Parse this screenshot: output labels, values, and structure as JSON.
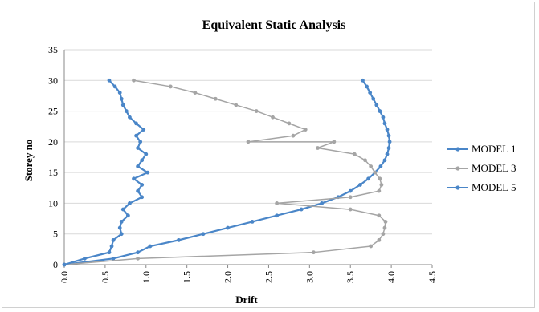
{
  "chart_data": {
    "type": "line",
    "title": "Equivalent Static Analysis",
    "xlabel": "Drift",
    "ylabel": "Storey no",
    "xlim": [
      0,
      4.5
    ],
    "ylim": [
      0,
      35
    ],
    "x_ticks": [
      "0.0",
      "0.5",
      "1.0",
      "1.5",
      "2.0",
      "2.5",
      "3.0",
      "3.5",
      "4.0",
      "4.5"
    ],
    "y_ticks": [
      "0",
      "5",
      "10",
      "15",
      "20",
      "25",
      "30",
      "35"
    ],
    "grid": "horizontal",
    "legend_position": "right",
    "series": [
      {
        "name": "MODEL 1",
        "color": "#4a86c8",
        "points": [
          [
            0,
            0
          ],
          [
            0.6,
            1
          ],
          [
            0.9,
            2
          ],
          [
            1.05,
            3
          ],
          [
            1.4,
            4
          ],
          [
            1.7,
            5
          ],
          [
            2.0,
            6
          ],
          [
            2.3,
            7
          ],
          [
            2.6,
            8
          ],
          [
            2.9,
            9
          ],
          [
            3.15,
            10
          ],
          [
            3.35,
            11
          ],
          [
            3.5,
            12
          ],
          [
            3.62,
            13
          ],
          [
            3.72,
            14
          ],
          [
            3.8,
            15
          ],
          [
            3.87,
            16
          ],
          [
            3.92,
            17
          ],
          [
            3.95,
            18
          ],
          [
            3.97,
            19
          ],
          [
            3.98,
            20
          ],
          [
            3.97,
            21
          ],
          [
            3.95,
            22
          ],
          [
            3.92,
            23
          ],
          [
            3.9,
            24
          ],
          [
            3.86,
            25
          ],
          [
            3.82,
            26
          ],
          [
            3.78,
            27
          ],
          [
            3.74,
            28
          ],
          [
            3.7,
            29
          ],
          [
            3.65,
            30
          ]
        ]
      },
      {
        "name": "MODEL 3",
        "color": "#a5a5a5",
        "points": [
          [
            0,
            0
          ],
          [
            0.9,
            1
          ],
          [
            3.05,
            2
          ],
          [
            3.75,
            3
          ],
          [
            3.85,
            4
          ],
          [
            3.9,
            5
          ],
          [
            3.92,
            6
          ],
          [
            3.93,
            7
          ],
          [
            3.85,
            8
          ],
          [
            3.5,
            9
          ],
          [
            2.6,
            10
          ],
          [
            3.5,
            11
          ],
          [
            3.85,
            12
          ],
          [
            3.88,
            13
          ],
          [
            3.86,
            14
          ],
          [
            3.8,
            15
          ],
          [
            3.75,
            16
          ],
          [
            3.68,
            17
          ],
          [
            3.55,
            18
          ],
          [
            3.1,
            19
          ],
          [
            3.3,
            20
          ],
          [
            2.25,
            20
          ],
          [
            2.8,
            21
          ],
          [
            2.95,
            22
          ],
          [
            2.75,
            23
          ],
          [
            2.55,
            24
          ],
          [
            2.35,
            25
          ],
          [
            2.1,
            26
          ],
          [
            1.85,
            27
          ],
          [
            1.6,
            28
          ],
          [
            1.3,
            29
          ],
          [
            0.85,
            30
          ]
        ]
      },
      {
        "name": "MODEL 5",
        "color": "#4a86c8",
        "points": [
          [
            0,
            0
          ],
          [
            0.25,
            1
          ],
          [
            0.55,
            2
          ],
          [
            0.58,
            3
          ],
          [
            0.6,
            4
          ],
          [
            0.7,
            5
          ],
          [
            0.68,
            6
          ],
          [
            0.7,
            7
          ],
          [
            0.78,
            8
          ],
          [
            0.72,
            9
          ],
          [
            0.8,
            10
          ],
          [
            0.95,
            11
          ],
          [
            0.9,
            12
          ],
          [
            0.95,
            13
          ],
          [
            0.85,
            14
          ],
          [
            1.02,
            15
          ],
          [
            0.9,
            16
          ],
          [
            0.95,
            17
          ],
          [
            1.0,
            18
          ],
          [
            0.9,
            19
          ],
          [
            0.93,
            20
          ],
          [
            0.88,
            21
          ],
          [
            0.97,
            22
          ],
          [
            0.88,
            23
          ],
          [
            0.8,
            24
          ],
          [
            0.76,
            25
          ],
          [
            0.72,
            26
          ],
          [
            0.7,
            27
          ],
          [
            0.68,
            28
          ],
          [
            0.62,
            29
          ],
          [
            0.55,
            30
          ]
        ]
      }
    ]
  }
}
